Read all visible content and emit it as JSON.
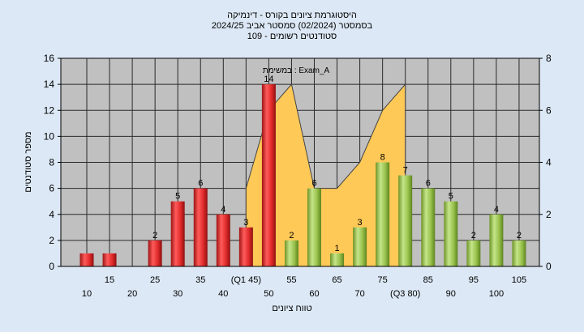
{
  "chart_data": {
    "type": "bar",
    "title_lines": [
      "היסטוגרמת ציונים בקורס - דינמיקה",
      "בסמסטר  (02/2024)  סמסטר אביב 2024/25",
      "סטודנטים רשומים - 109"
    ],
    "annotation": "במשימת : Exam_A",
    "xlabel": "טווח ציונים",
    "ylabel": "מספר סטודנטים",
    "ylim": [
      0,
      16
    ],
    "yticks": [
      0,
      2,
      4,
      6,
      8,
      10,
      12,
      14,
      16
    ],
    "y2lim": [
      0,
      8
    ],
    "y2ticks": [
      0,
      2,
      4,
      6,
      8
    ],
    "grid": true,
    "categories": [
      10,
      15,
      20,
      25,
      30,
      35,
      40,
      45,
      50,
      55,
      60,
      65,
      70,
      75,
      80,
      85,
      90,
      95,
      100,
      105
    ],
    "xtick_labels_upper": [
      "15",
      "25",
      "35",
      "(Q1 45)",
      "55",
      "65",
      "75",
      "85",
      "95",
      "105"
    ],
    "xtick_labels_lower": [
      "10",
      "20",
      "30",
      "40",
      "50",
      "60",
      "70",
      "(Q3 80)",
      "90",
      "100"
    ],
    "values": [
      1,
      1,
      0,
      2,
      5,
      6,
      4,
      3,
      14,
      2,
      6,
      1,
      3,
      8,
      7,
      6,
      5,
      2,
      4,
      2
    ],
    "value_labels": [
      "",
      "",
      "",
      "2",
      "5",
      "6",
      "4",
      "3",
      "14",
      "2",
      "6",
      "1",
      "3",
      "8",
      "7",
      "6",
      "5",
      "2",
      "4",
      "2"
    ],
    "bar_colors": [
      "red",
      "red",
      "red",
      "red",
      "red",
      "red",
      "red",
      "red",
      "red",
      "green",
      "green",
      "green",
      "green",
      "green",
      "green",
      "green",
      "green",
      "green",
      "green",
      "green"
    ],
    "area_series": {
      "x": [
        45,
        50,
        55,
        60,
        65,
        70,
        75,
        80
      ],
      "y": [
        3,
        6,
        7,
        3,
        3,
        4,
        6,
        7
      ],
      "axis": "right"
    },
    "colors": {
      "background": "#dce8f5",
      "plot_bg": "#c0c0c0",
      "grid": "#2a2a2a",
      "area": "#ffc957",
      "bar_red": "#e03030",
      "bar_green": "#9ac44a"
    }
  }
}
